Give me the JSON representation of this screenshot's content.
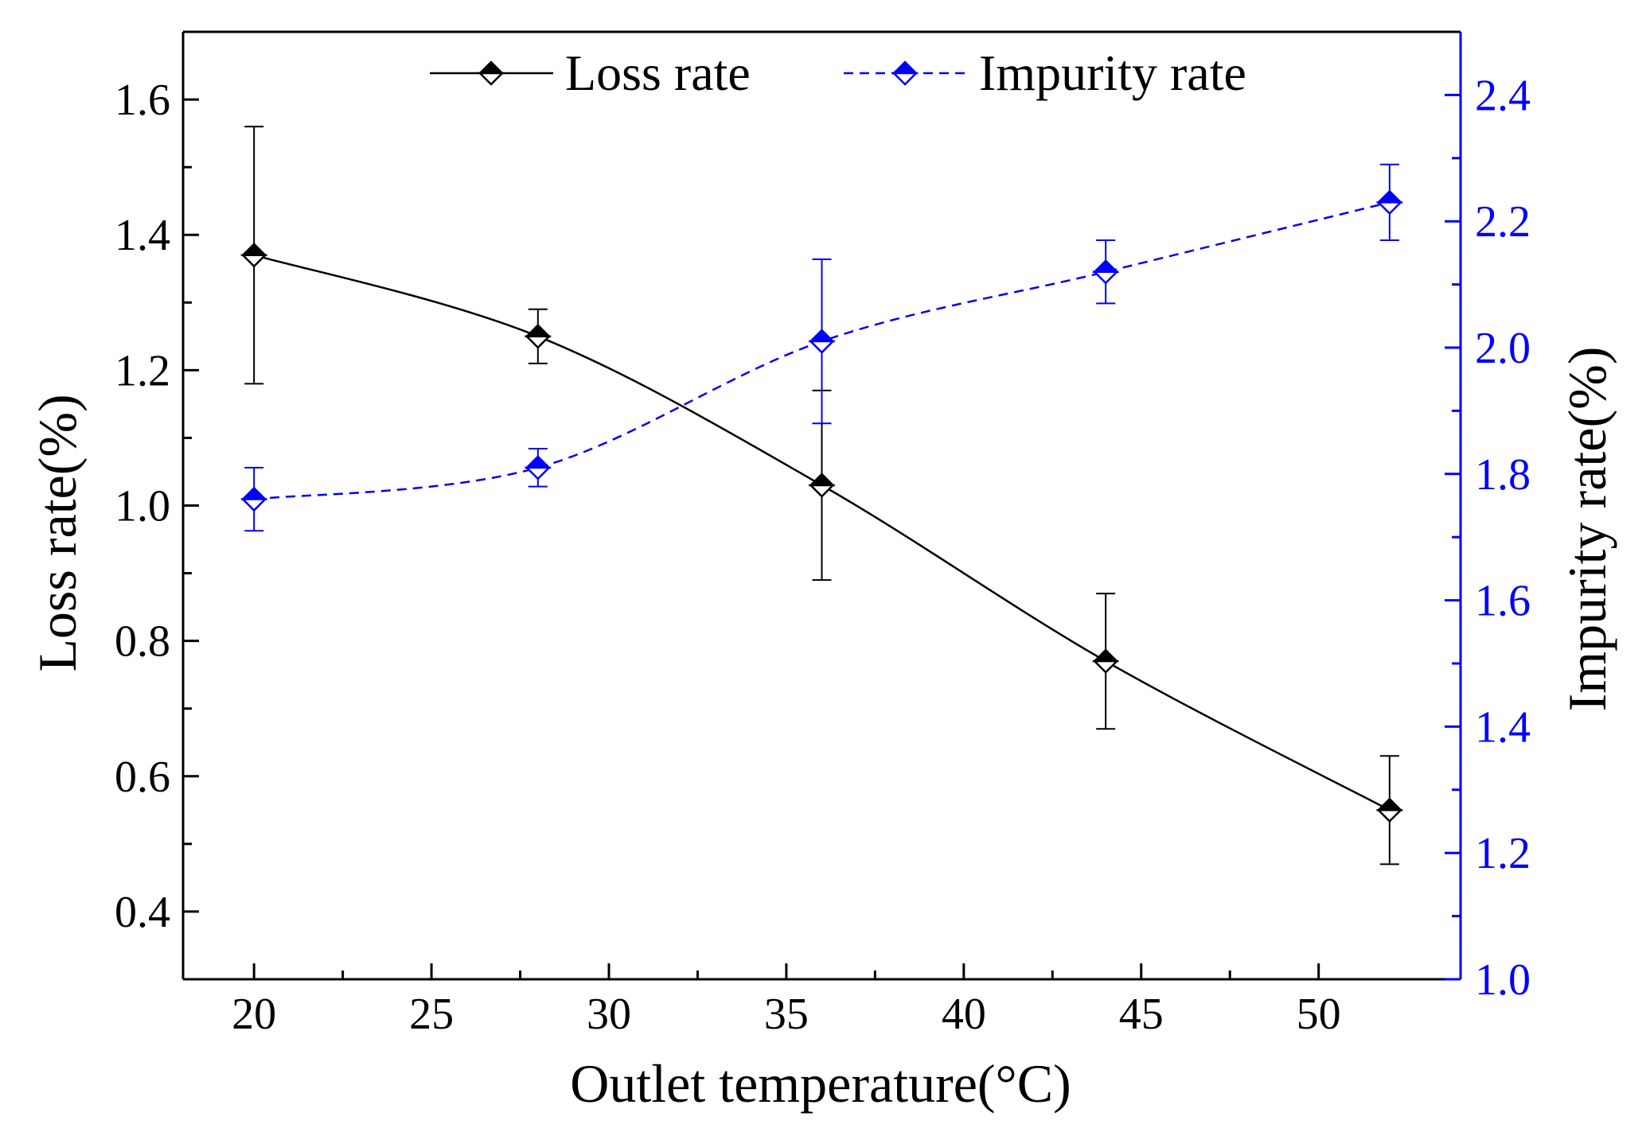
{
  "chart_data": {
    "type": "line",
    "title": "",
    "xlabel": "Outlet temperature(°C)",
    "ylabel_left": "Loss rate(%)",
    "ylabel_right": "Impurity rate(%)",
    "x": [
      20,
      28,
      36,
      44,
      52
    ],
    "xlim": [
      18,
      54
    ],
    "xticks": [
      20,
      25,
      30,
      35,
      40,
      45,
      50
    ],
    "xtick_labels": [
      "20",
      "25",
      "30",
      "35",
      "40",
      "45",
      "50"
    ],
    "ylim_left": [
      0.3,
      1.7
    ],
    "yticks_left": [
      0.4,
      0.6,
      0.8,
      1.0,
      1.2,
      1.4,
      1.6
    ],
    "ytick_labels_left": [
      "0.4",
      "0.6",
      "0.8",
      "1.0",
      "1.2",
      "1.4",
      "1.6"
    ],
    "ylim_right": [
      1.0,
      2.5
    ],
    "yticks_right": [
      1.0,
      1.2,
      1.4,
      1.6,
      1.8,
      2.0,
      2.2,
      2.4
    ],
    "ytick_labels_right": [
      "1.0",
      "1.2",
      "1.4",
      "1.6",
      "1.8",
      "2.0",
      "2.2",
      "2.4"
    ],
    "legend_position": "top",
    "series": [
      {
        "name": "Loss rate",
        "axis": "left",
        "color": "#000000",
        "line_style": "solid",
        "marker": "half-filled-diamond",
        "values": [
          1.37,
          1.25,
          1.03,
          0.77,
          0.55
        ],
        "err_upper": [
          1.56,
          1.29,
          1.17,
          0.87,
          0.63
        ],
        "err_lower": [
          1.18,
          1.21,
          0.89,
          0.67,
          0.47
        ]
      },
      {
        "name": "Impurity rate",
        "axis": "right",
        "color": "#0000ff",
        "line_style": "dashed",
        "marker": "half-filled-diamond",
        "values": [
          1.76,
          1.81,
          2.01,
          2.12,
          2.23
        ],
        "err_upper": [
          1.81,
          1.84,
          2.14,
          2.17,
          2.29
        ],
        "err_lower": [
          1.71,
          1.78,
          1.88,
          2.07,
          2.17
        ]
      }
    ]
  }
}
